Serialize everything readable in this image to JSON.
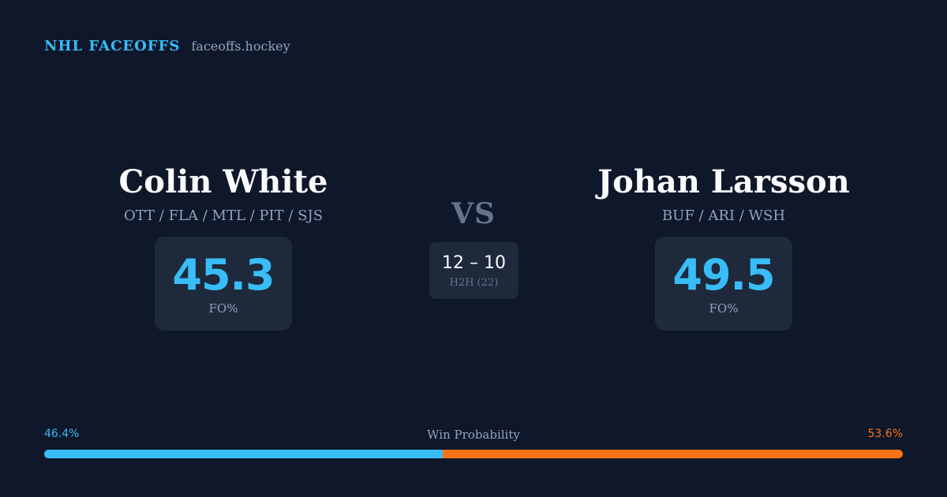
{
  "header": {
    "brand": "NHL FACEOFFS",
    "domain": "faceoffs.hockey"
  },
  "left_player": {
    "name": "Colin White",
    "teams": "OTT / FLA / MTL / PIT / SJS",
    "fo_pct": "45.3",
    "fo_label": "FO%"
  },
  "right_player": {
    "name": "Johan Larsson",
    "teams": "BUF / ARI / WSH",
    "fo_pct": "49.5",
    "fo_label": "FO%"
  },
  "matchup": {
    "vs_label": "VS",
    "h2h_score": "12 – 10",
    "h2h_label": "H2H (22)"
  },
  "win_probability": {
    "title": "Win Probability",
    "left_label": "46.4%",
    "right_label": "53.6%",
    "left_value": 46.4,
    "right_value": 53.6,
    "left_color": "#38bdf8",
    "right_color": "#f97316"
  }
}
